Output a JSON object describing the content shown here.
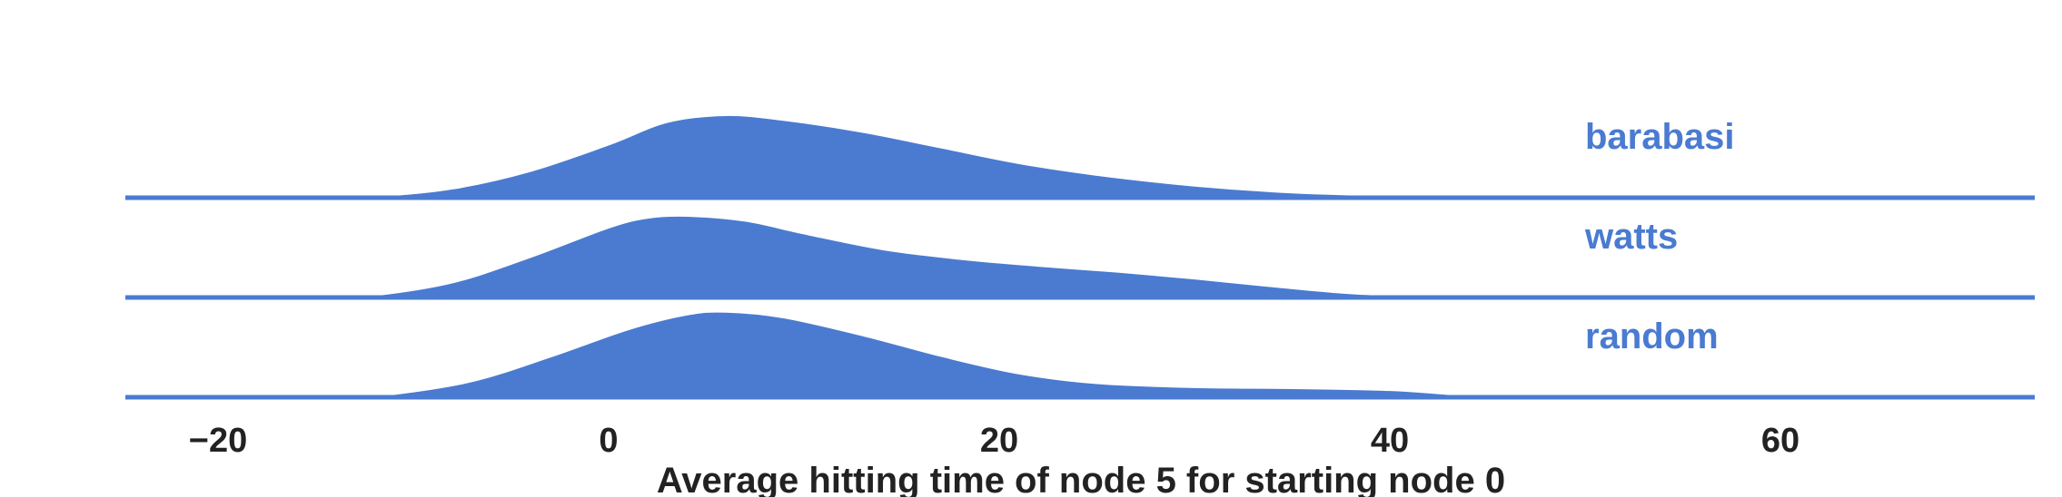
{
  "chart_data": {
    "type": "ridgeline",
    "xlabel": "Average hitting time of node 5 for starting node 0",
    "xlim": [
      -25,
      73
    ],
    "xticks": [
      {
        "value": -20,
        "label": "−20"
      },
      {
        "value": 0,
        "label": "0"
      },
      {
        "value": 20,
        "label": "20"
      },
      {
        "value": 40,
        "label": "40"
      },
      {
        "value": 60,
        "label": "60"
      }
    ],
    "color": "#4a7bd1",
    "series": [
      {
        "name": "barabasi",
        "points": [
          [
            -25,
            0
          ],
          [
            -16,
            0
          ],
          [
            -12,
            0.02
          ],
          [
            -8,
            0.1
          ],
          [
            -4,
            0.28
          ],
          [
            0,
            0.55
          ],
          [
            3,
            0.78
          ],
          [
            6,
            0.85
          ],
          [
            9,
            0.8
          ],
          [
            13,
            0.68
          ],
          [
            17,
            0.52
          ],
          [
            21,
            0.36
          ],
          [
            25,
            0.24
          ],
          [
            30,
            0.13
          ],
          [
            35,
            0.06
          ],
          [
            40,
            0.03
          ],
          [
            45,
            0.015
          ],
          [
            50,
            0.008
          ],
          [
            55,
            0.004
          ],
          [
            60,
            0.002
          ],
          [
            65,
            0.001
          ],
          [
            73,
            0
          ]
        ]
      },
      {
        "name": "watts",
        "points": [
          [
            -25,
            0
          ],
          [
            -15,
            0
          ],
          [
            -12,
            0.03
          ],
          [
            -8,
            0.16
          ],
          [
            -4,
            0.42
          ],
          [
            0,
            0.72
          ],
          [
            2,
            0.82
          ],
          [
            4,
            0.84
          ],
          [
            7,
            0.79
          ],
          [
            10,
            0.66
          ],
          [
            14,
            0.5
          ],
          [
            18,
            0.4
          ],
          [
            22,
            0.33
          ],
          [
            26,
            0.27
          ],
          [
            30,
            0.2
          ],
          [
            34,
            0.12
          ],
          [
            38,
            0.05
          ],
          [
            42,
            0.02
          ],
          [
            46,
            0.008
          ],
          [
            50,
            0
          ],
          [
            73,
            0
          ]
        ]
      },
      {
        "name": "random",
        "points": [
          [
            -25,
            0
          ],
          [
            -14,
            0
          ],
          [
            -11,
            0.04
          ],
          [
            -7,
            0.17
          ],
          [
            -3,
            0.42
          ],
          [
            1,
            0.7
          ],
          [
            4,
            0.85
          ],
          [
            6,
            0.88
          ],
          [
            9,
            0.82
          ],
          [
            13,
            0.64
          ],
          [
            17,
            0.43
          ],
          [
            21,
            0.25
          ],
          [
            25,
            0.15
          ],
          [
            30,
            0.11
          ],
          [
            35,
            0.1
          ],
          [
            40,
            0.08
          ],
          [
            43,
            0.04
          ],
          [
            46,
            0.01
          ],
          [
            50,
            0
          ],
          [
            73,
            0
          ]
        ]
      }
    ]
  }
}
